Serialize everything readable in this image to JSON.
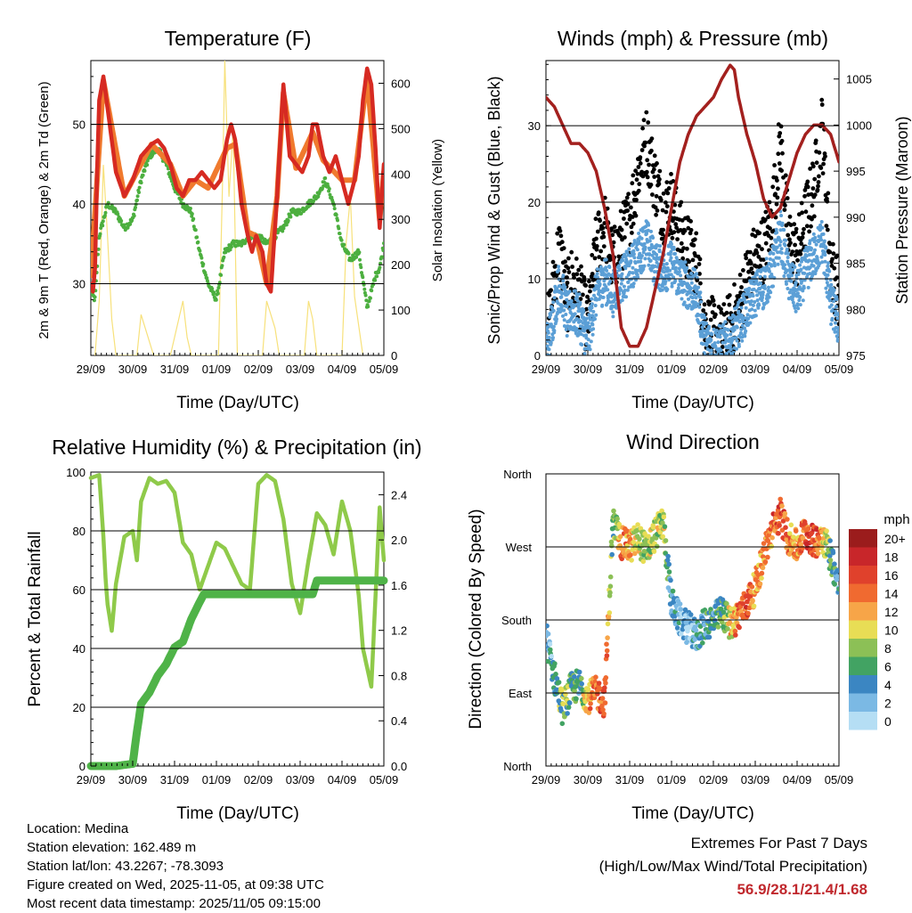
{
  "chart_data": [
    {
      "type": "line",
      "title": "Temperature (F)",
      "xlabel": "Time (Day/UTC)",
      "ylabel": "2m & 9m T (Red, Orange) & 2m Td (Green)",
      "y2label": "Solar Insolation (Yellow)",
      "x_ticks": [
        "29/09",
        "30/09",
        "31/09",
        "01/09",
        "02/09",
        "03/09",
        "04/09",
        "05/09"
      ],
      "ylim": [
        21,
        58
      ],
      "y_ticks": [
        30,
        40,
        50
      ],
      "y2lim": [
        0,
        650
      ],
      "y2_ticks": [
        0,
        100,
        200,
        300,
        400,
        500,
        600
      ],
      "series": [
        {
          "name": "2m T",
          "color": "#d62a22",
          "x": [
            0,
            0.05,
            0.1,
            0.15,
            0.2,
            0.3,
            0.45,
            0.6,
            0.8,
            1.0,
            1.2,
            1.45,
            1.6,
            1.75,
            1.9,
            2.05,
            2.2,
            2.35,
            2.5,
            2.65,
            2.8,
            2.95,
            3.1,
            3.25,
            3.35,
            3.45,
            3.6,
            3.75,
            3.85,
            3.95,
            4.1,
            4.2,
            4.3,
            4.45,
            4.6,
            4.75,
            4.9,
            5.05,
            5.2,
            5.3,
            5.4,
            5.55,
            5.7,
            5.85,
            6.0,
            6.15,
            6.3,
            6.4,
            6.5,
            6.6,
            6.7,
            6.8,
            6.9,
            7.0
          ],
          "values": [
            30,
            29,
            32,
            44,
            53,
            56,
            50,
            44,
            41,
            43,
            46,
            47.5,
            48,
            47,
            45,
            42,
            41,
            43,
            43,
            44,
            43,
            42,
            43,
            48,
            50,
            48,
            40,
            36,
            34,
            36,
            34,
            30,
            29,
            41,
            55,
            46,
            45,
            44,
            46,
            50,
            50,
            46,
            44,
            46,
            43,
            40,
            43,
            46,
            53,
            57,
            55,
            47,
            37,
            45
          ]
        },
        {
          "name": "9m T",
          "color": "#f07a2e",
          "x": [
            0,
            0.15,
            0.3,
            0.8,
            1.45,
            1.9,
            2.2,
            2.5,
            2.8,
            3.25,
            3.45,
            3.75,
            3.95,
            4.2,
            4.45,
            4.6,
            4.9,
            5.3,
            5.55,
            6.0,
            6.3,
            6.6,
            6.9,
            7.0
          ],
          "values": [
            31,
            43,
            55.5,
            41,
            47.5,
            45,
            41,
            43,
            42,
            47,
            47.5,
            36.5,
            36,
            30,
            41,
            54,
            44.5,
            49,
            45.5,
            43,
            43,
            56,
            38,
            44
          ]
        },
        {
          "name": "2m Td",
          "color": "#4caf3f",
          "x": [
            0,
            0.1,
            0.2,
            0.4,
            0.6,
            0.8,
            1.0,
            1.2,
            1.4,
            1.6,
            1.8,
            2.0,
            2.2,
            2.4,
            2.6,
            2.8,
            3.0,
            3.2,
            3.4,
            3.6,
            3.8,
            4.0,
            4.2,
            4.4,
            4.6,
            4.8,
            5.0,
            5.2,
            5.4,
            5.6,
            5.8,
            6.0,
            6.2,
            6.4,
            6.6,
            6.8,
            6.9,
            7.0
          ],
          "values": [
            29,
            28,
            36,
            40,
            39,
            37,
            38,
            43,
            46,
            47,
            45,
            42,
            40,
            39,
            34,
            30,
            28,
            34,
            35,
            35,
            36,
            36,
            35,
            36,
            37,
            39,
            39,
            40,
            41,
            43,
            40,
            35,
            33,
            34,
            27,
            31,
            32,
            35
          ]
        },
        {
          "name": "Solar Insolation",
          "color": "#f7e17b",
          "axis": "y2",
          "x": [
            0.1,
            0.2,
            0.3,
            0.4,
            0.5,
            0.6,
            1.1,
            1.2,
            1.3,
            1.5,
            1.9,
            2.1,
            2.2,
            2.3,
            2.4,
            3.05,
            3.15,
            3.2,
            3.3,
            3.4,
            3.5,
            4.1,
            4.2,
            4.3,
            4.4,
            4.5,
            5.1,
            5.2,
            5.3,
            5.4,
            6.0,
            6.1,
            6.2,
            6.3,
            6.5
          ],
          "values": [
            0,
            120,
            420,
            260,
            80,
            0,
            0,
            90,
            60,
            0,
            0,
            80,
            120,
            40,
            0,
            0,
            400,
            650,
            350,
            500,
            0,
            0,
            120,
            90,
            60,
            0,
            0,
            120,
            80,
            0,
            0,
            250,
            350,
            130,
            0
          ]
        }
      ]
    },
    {
      "type": "scatter",
      "title": "Winds (mph) & Pressure (mb)",
      "xlabel": "Time (Day/UTC)",
      "ylabel": "Sonic/Prop Wind & Gust (Blue, Black)",
      "y2label": "Station Pressure (Maroon)",
      "x_ticks": [
        "29/09",
        "30/09",
        "31/09",
        "01/09",
        "02/09",
        "03/09",
        "04/09",
        "05/09"
      ],
      "ylim": [
        0,
        38.5
      ],
      "y_ticks": [
        0,
        10,
        20,
        30
      ],
      "y2lim": [
        975,
        1007
      ],
      "y2_ticks": [
        975,
        980,
        985,
        990,
        995,
        1000,
        1005
      ],
      "series": [
        {
          "name": "Gust",
          "color": "#000000",
          "x": [
            0,
            0.1,
            0.2,
            0.3,
            0.4,
            0.5,
            0.6,
            0.8,
            1.0,
            1.2,
            1.4,
            1.6,
            1.8,
            2.0,
            2.2,
            2.4,
            2.6,
            2.8,
            3.0,
            3.2,
            3.4,
            3.6,
            3.8,
            4.0,
            4.2,
            4.4,
            4.6,
            4.8,
            5.0,
            5.2,
            5.4,
            5.6,
            5.8,
            6.0,
            6.2,
            6.4,
            6.6,
            6.8,
            7.0
          ],
          "values": [
            2,
            5,
            10,
            14,
            12,
            7,
            10,
            8,
            4,
            14,
            17,
            12,
            15,
            18,
            24,
            28,
            23,
            19,
            20,
            16,
            14,
            12,
            4,
            3,
            2,
            4,
            6,
            10,
            13,
            14,
            18,
            28,
            15,
            13,
            18,
            22,
            30,
            12,
            8
          ]
        },
        {
          "name": "Wind",
          "color": "#5b9fd6",
          "x": [
            0,
            0.1,
            0.2,
            0.3,
            0.4,
            0.5,
            0.6,
            0.8,
            1.0,
            1.2,
            1.4,
            1.6,
            1.8,
            2.0,
            2.2,
            2.4,
            2.6,
            2.8,
            3.0,
            3.2,
            3.4,
            3.6,
            3.8,
            4.0,
            4.2,
            4.4,
            4.6,
            4.8,
            5.0,
            5.2,
            5.4,
            5.6,
            5.8,
            6.0,
            6.2,
            6.4,
            6.6,
            6.8,
            7.0
          ],
          "values": [
            1,
            3,
            6,
            9,
            8,
            5,
            6,
            5,
            2,
            8,
            10,
            8,
            10,
            11,
            13,
            15,
            12,
            11,
            12,
            10,
            9,
            8,
            2,
            1,
            1,
            2,
            4,
            6,
            8,
            9,
            11,
            16,
            10,
            8,
            11,
            13,
            15,
            7,
            4
          ]
        },
        {
          "name": "Station Pressure",
          "color": "#a3201e",
          "axis": "y2",
          "x": [
            0,
            0.2,
            0.4,
            0.6,
            0.8,
            1.0,
            1.2,
            1.4,
            1.6,
            1.8,
            2.0,
            2.2,
            2.4,
            2.6,
            2.8,
            3.0,
            3.2,
            3.4,
            3.6,
            3.8,
            4.0,
            4.2,
            4.4,
            4.5,
            4.6,
            4.8,
            5.0,
            5.2,
            5.4,
            5.6,
            5.8,
            6.0,
            6.2,
            6.4,
            6.6,
            6.8,
            7.0
          ],
          "values": [
            1003,
            1002,
            1000,
            998,
            998,
            997,
            995,
            991,
            986,
            978,
            976,
            976,
            978,
            982,
            986,
            991,
            996,
            999,
            1001,
            1002,
            1003,
            1005,
            1006.5,
            1006,
            1003,
            999,
            996,
            992,
            990,
            991,
            994,
            997,
            999,
            1000,
            1000,
            999,
            996
          ]
        }
      ]
    },
    {
      "type": "line",
      "title": "Relative Humidity (%) & Precipitation (in)",
      "xlabel": "Time (Day/UTC)",
      "ylabel": "Percent & Total Rainfall",
      "x_ticks": [
        "29/09",
        "30/09",
        "31/09",
        "01/09",
        "02/09",
        "03/09",
        "04/09",
        "05/09"
      ],
      "ylim": [
        0,
        100
      ],
      "y_ticks": [
        0,
        20,
        40,
        60,
        80,
        100
      ],
      "y2lim": [
        0,
        2.6
      ],
      "y2_ticks": [
        "0.0",
        "0.4",
        "0.8",
        "1.2",
        "1.6",
        "2.0",
        "2.4"
      ],
      "series": [
        {
          "name": "Relative Humidity",
          "color": "#8fca4a",
          "x": [
            0,
            0.2,
            0.3,
            0.35,
            0.4,
            0.5,
            0.6,
            0.8,
            1.0,
            1.1,
            1.2,
            1.4,
            1.6,
            1.8,
            2.0,
            2.2,
            2.4,
            2.6,
            2.8,
            3.0,
            3.2,
            3.4,
            3.6,
            3.8,
            4.0,
            4.2,
            4.4,
            4.6,
            4.8,
            5.0,
            5.2,
            5.4,
            5.6,
            5.8,
            6.0,
            6.2,
            6.4,
            6.5,
            6.7,
            6.9,
            7.0
          ],
          "values": [
            98,
            99,
            78,
            64,
            55,
            46,
            62,
            78,
            80,
            70,
            90,
            98,
            96,
            97,
            93,
            76,
            72,
            60,
            68,
            76,
            74,
            68,
            62,
            60,
            96,
            99,
            97,
            84,
            62,
            52,
            70,
            86,
            82,
            72,
            90,
            80,
            58,
            40,
            27,
            88,
            70
          ]
        },
        {
          "name": "Total Rainfall",
          "color": "#4fb348",
          "axis": "y2",
          "x": [
            0,
            0.3,
            0.6,
            1.0,
            1.1,
            1.2,
            1.4,
            1.6,
            1.8,
            2.0,
            2.2,
            2.4,
            2.6,
            2.7,
            3.0,
            4.0,
            5.0,
            5.3,
            5.4,
            6.0,
            7.0
          ],
          "values": [
            0,
            0,
            0,
            0.02,
            0.3,
            0.55,
            0.65,
            0.8,
            0.9,
            1.05,
            1.1,
            1.3,
            1.45,
            1.52,
            1.52,
            1.52,
            1.52,
            1.52,
            1.64,
            1.64,
            1.64
          ]
        }
      ]
    },
    {
      "type": "scatter",
      "title": "Wind Direction",
      "xlabel": "Time (Day/UTC)",
      "ylabel": "Direction (Colored By Speed)",
      "x_ticks": [
        "29/09",
        "30/09",
        "31/09",
        "01/09",
        "02/09",
        "03/09",
        "04/09",
        "05/09"
      ],
      "y_ticks": [
        "North",
        "East",
        "South",
        "West",
        "North"
      ],
      "ylim": [
        0,
        360
      ],
      "colorbar_title": "mph",
      "colorbar_labels": [
        "20+",
        "18",
        "16",
        "14",
        "12",
        "10",
        "8",
        "6",
        "4",
        "2",
        "0"
      ],
      "colorbar_colors": [
        "#9b1c1c",
        "#c8262a",
        "#e0412c",
        "#f06a30",
        "#f7a548",
        "#e8dd55",
        "#8cc056",
        "#42a363",
        "#3b86c2",
        "#7bb9e4",
        "#b5def4"
      ],
      "series": [
        {
          "name": "Direction",
          "x": [
            0,
            0.2,
            0.4,
            0.6,
            0.8,
            1.0,
            1.2,
            1.4,
            1.6,
            1.8,
            2.0,
            2.2,
            2.4,
            2.6,
            2.8,
            3.0,
            3.2,
            3.4,
            3.6,
            3.8,
            4.0,
            4.2,
            4.4,
            4.6,
            4.8,
            5.0,
            5.2,
            5.4,
            5.6,
            5.8,
            6.0,
            6.2,
            6.4,
            6.6,
            6.8,
            7.0
          ],
          "values": [
            160,
            110,
            70,
            95,
            100,
            85,
            90,
            80,
            300,
            275,
            270,
            280,
            265,
            285,
            300,
            200,
            180,
            170,
            160,
            175,
            180,
            190,
            175,
            185,
            200,
            220,
            260,
            290,
            310,
            280,
            270,
            290,
            275,
            285,
            260,
            220
          ],
          "speeds": [
            3,
            4,
            8,
            6,
            5,
            12,
            14,
            15,
            6,
            14,
            12,
            10,
            8,
            9,
            9,
            3,
            2,
            2,
            3,
            4,
            5,
            6,
            10,
            14,
            16,
            12,
            12,
            14,
            16,
            13,
            12,
            15,
            16,
            12,
            6,
            4
          ]
        }
      ]
    }
  ],
  "info": {
    "location": "Location: Medina",
    "elevation": "Station elevation: 162.489 m",
    "latlon": "Station lat/lon: 43.2267; -78.3093",
    "created": "Figure created on Wed, 2025-11-05, at 09:38 UTC",
    "recent": "Most recent data timestamp: 2025/11/05 09:15:00"
  },
  "extremes": {
    "line1": "Extremes For Past 7 Days",
    "line2": "(High/Low/Max Wind/Total Precipitation)",
    "values": "56.9/28.1/21.4/1.68"
  }
}
